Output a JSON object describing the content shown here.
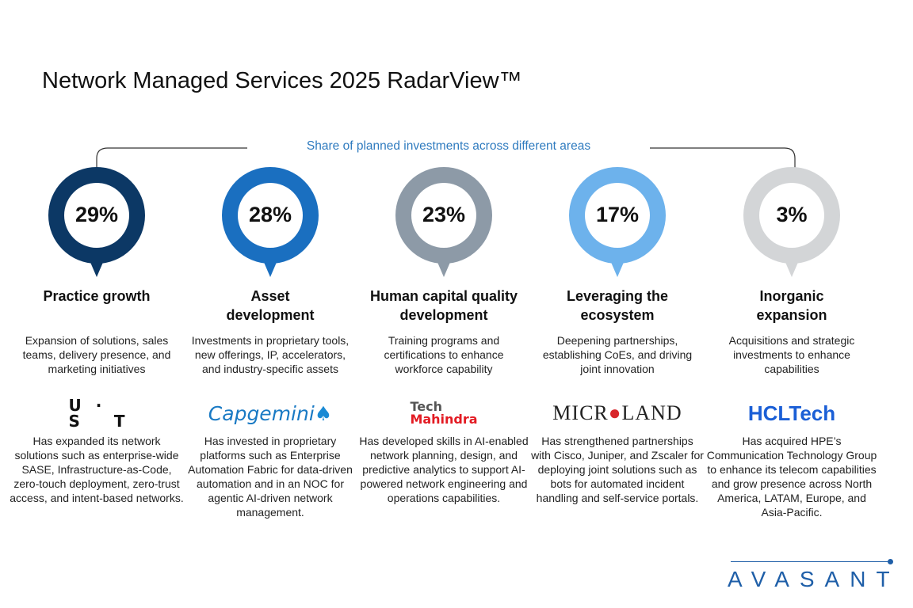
{
  "title": "Network Managed Services 2025 RadarView™",
  "subtitle": "Share of planned investments across different areas",
  "colors": [
    "#0c3865",
    "#1a6fc0",
    "#8d9aa7",
    "#6db2ec",
    "#d3d5d7"
  ],
  "columns": [
    {
      "percent": "29%",
      "value": 29,
      "heading": "Practice growth",
      "description": "Expansion of solutions, sales teams, delivery presence, and marketing initiatives",
      "logo": "U - S T",
      "company_text": "Has expanded its network solutions such as enterprise-wide SASE, Infrastructure-as-Code, zero-touch deployment, zero-trust access, and intent-based networks."
    },
    {
      "percent": "28%",
      "value": 28,
      "heading": "Asset development",
      "description": "Investments in proprietary tools, new offerings, IP, accelerators, and industry-specific assets",
      "logo": "Capgemini",
      "company_text": "Has invested in proprietary platforms such as Enterprise Automation Fabric for data-driven automation and in an NOC for agentic AI-driven network management."
    },
    {
      "percent": "23%",
      "value": 23,
      "heading": "Human capital quality development",
      "description": "Training programs and certifications to enhance workforce capability",
      "logo": "Tech Mahindra",
      "company_text": "Has developed skills in AI-enabled network planning, design, and predictive analytics to support AI-powered network engineering and operations capabilities."
    },
    {
      "percent": "17%",
      "value": 17,
      "heading": "Leveraging the ecosystem",
      "description": "Deepening partnerships, establishing CoEs, and driving joint innovation",
      "logo": "MICROLAND",
      "company_text": "Has strengthened partnerships with Cisco, Juniper, and Zscaler for deploying joint solutions such as bots for automated incident handling and self-service portals."
    },
    {
      "percent": "3%",
      "value": 3,
      "heading": "Inorganic expansion",
      "description": "Acquisitions and strategic investments to enhance capabilities",
      "logo": "HCLTech",
      "company_text": "Has acquired HPE’s Communication Technology Group to enhance its telecom capabilities and grow presence across North America, LATAM, Europe, and Asia-Pacific."
    }
  ],
  "brand": "AVASANT"
}
